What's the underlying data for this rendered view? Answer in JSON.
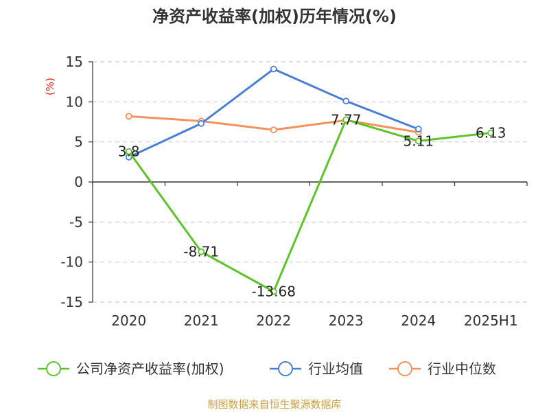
{
  "chart_data": {
    "type": "line",
    "title": "净资产收益率(加权)历年情况(%)",
    "ylabel": "(%)",
    "xlabel": "",
    "categories": [
      "2020",
      "2021",
      "2022",
      "2023",
      "2024",
      "2025H1"
    ],
    "ylim": [
      -15,
      15
    ],
    "yticks": [
      15,
      10,
      5,
      0,
      -5,
      -10,
      -15
    ],
    "grid": true,
    "legend_position": "bottom",
    "series": [
      {
        "name": "公司净资产收益率(加权)",
        "color": "#5cc42a",
        "values": [
          3.8,
          -8.71,
          -13.68,
          7.77,
          5.11,
          6.13
        ],
        "labels": [
          "3.8",
          "-8.71",
          "-13.68",
          "7.77",
          "5.11",
          "6.13"
        ]
      },
      {
        "name": "行业均值",
        "color": "#4a7fd6",
        "values": [
          3.1,
          7.3,
          14.1,
          10.1,
          6.6,
          null
        ]
      },
      {
        "name": "行业中位数",
        "color": "#f5915a",
        "values": [
          8.2,
          7.6,
          6.5,
          7.7,
          6.2,
          null
        ]
      }
    ]
  },
  "source": "制图数据来自恒生聚源数据库"
}
